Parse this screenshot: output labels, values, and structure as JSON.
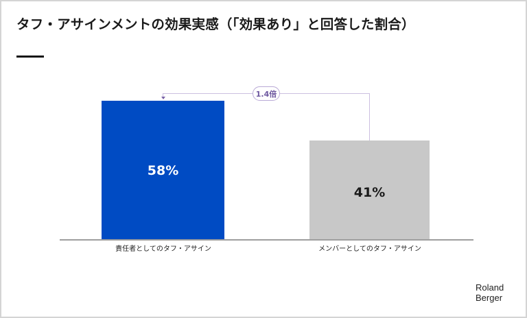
{
  "title": "タフ・アサインメントの効果実感（「効果あり」と回答した割合）",
  "logo": {
    "line1": "Roland",
    "line2": "Berger"
  },
  "colors": {
    "bar_primary": "#004bc3",
    "bar_secondary": "#c8c8c8",
    "connector": "#cbbfe0",
    "ratio_text": "#6e58a0"
  },
  "bars": [
    {
      "label": "責任者としてのタフ・アサイン",
      "value_label": "58%",
      "value": 58,
      "color": "#004bc3",
      "text_color": "#ffffff"
    },
    {
      "label": "メンバーとしてのタフ・アサイン",
      "value_label": "41%",
      "value": 41,
      "color": "#c8c8c8",
      "text_color": "#1a1a1a"
    }
  ],
  "annotation": {
    "ratio_label": "1.4倍"
  },
  "chart_data": {
    "type": "bar",
    "title": "タフ・アサインメントの効果実感（「効果あり」と回答した割合）",
    "categories": [
      "責任者としてのタフ・アサイン",
      "メンバーとしてのタフ・アサイン"
    ],
    "values": [
      58,
      41
    ],
    "unit": "%",
    "xlabel": "",
    "ylabel": "",
    "ylim": [
      0,
      58
    ],
    "grid": false,
    "legend": null,
    "annotations": [
      {
        "text": "1.4倍",
        "from": "メンバーとしてのタフ・アサイン",
        "to": "責任者としてのタフ・アサイン"
      }
    ]
  }
}
